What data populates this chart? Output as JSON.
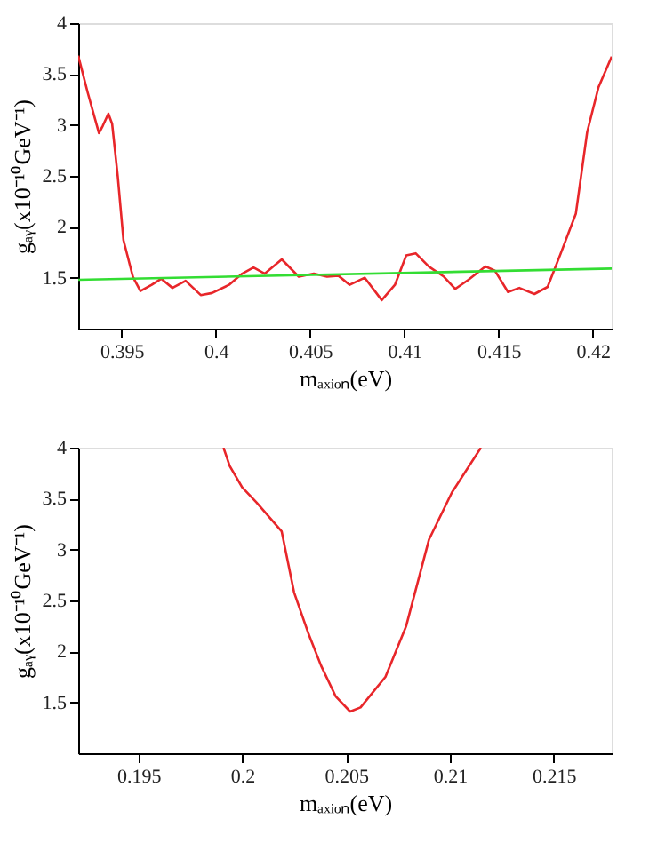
{
  "chart_data": [
    {
      "type": "line",
      "xlabel": "mₐₓᵢₒₙ(eV)",
      "ylabel": "gₐᵧ(x10⁻¹⁰GeV⁻¹)",
      "xlim": [
        0.3927,
        0.421
      ],
      "ylim": [
        1,
        4
      ],
      "xticks": [
        0.395,
        0.4,
        0.405,
        0.41,
        0.415,
        0.42
      ],
      "yticks": [
        1.5,
        2,
        2.5,
        3,
        3.5,
        4
      ],
      "series": [
        {
          "color": "#e8262a",
          "x": [
            0.3927,
            0.3932,
            0.3938,
            0.394,
            0.3943,
            0.3945,
            0.3948,
            0.3951,
            0.3956,
            0.396,
            0.3966,
            0.3971,
            0.3977,
            0.3984,
            0.3992,
            0.3998,
            0.4007,
            0.4014,
            0.402,
            0.4026,
            0.4035,
            0.4044,
            0.4052,
            0.4059,
            0.4065,
            0.4071,
            0.4079,
            0.4088,
            0.4095,
            0.4101,
            0.4106,
            0.4113,
            0.4121,
            0.4127,
            0.4134,
            0.4143,
            0.4148,
            0.4155,
            0.4161,
            0.4169,
            0.4176,
            0.4183,
            0.4191,
            0.4197,
            0.4203,
            0.421
          ],
          "values": [
            3.68,
            3.32,
            2.92,
            2.99,
            3.11,
            3.01,
            2.49,
            1.87,
            1.51,
            1.37,
            1.43,
            1.49,
            1.4,
            1.47,
            1.33,
            1.35,
            1.43,
            1.54,
            1.6,
            1.54,
            1.68,
            1.51,
            1.54,
            1.51,
            1.52,
            1.43,
            1.5,
            1.28,
            1.43,
            1.72,
            1.74,
            1.61,
            1.51,
            1.39,
            1.48,
            1.61,
            1.57,
            1.36,
            1.4,
            1.34,
            1.41,
            1.74,
            2.13,
            2.93,
            3.37,
            3.67
          ]
        },
        {
          "color": "#33dd33",
          "x": [
            0.3927,
            0.421
          ],
          "values": [
            1.48,
            1.59
          ]
        }
      ]
    },
    {
      "type": "line",
      "xlabel": "mₐₓᵢₒₙ(eV)",
      "ylabel": "gₐᵧ(x10⁻¹⁰GeV⁻¹)",
      "xlim": [
        0.1921,
        0.2178
      ],
      "ylim": [
        1,
        4
      ],
      "xticks": [
        0.195,
        0.2,
        0.205,
        0.21,
        0.215
      ],
      "yticks": [
        1.5,
        2,
        2.5,
        3,
        3.5,
        4
      ],
      "series": [
        {
          "color": "#e8262a",
          "x": [
            0.1991,
            0.1994,
            0.2,
            0.2007,
            0.2019,
            0.2025,
            0.2032,
            0.2038,
            0.2045,
            0.2052,
            0.2057,
            0.2069,
            0.2079,
            0.209,
            0.2101,
            0.2115
          ],
          "values": [
            4.0,
            3.82,
            3.61,
            3.46,
            3.18,
            2.58,
            2.17,
            1.86,
            1.56,
            1.41,
            1.45,
            1.75,
            2.25,
            3.1,
            3.56,
            4.0
          ]
        }
      ]
    }
  ]
}
